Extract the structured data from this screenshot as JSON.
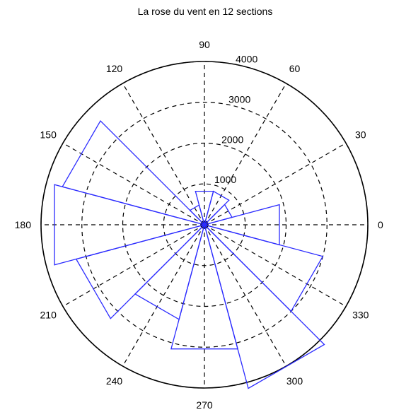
{
  "chart_data": {
    "type": "polar-bar",
    "title": "La rose du vent en 12 sections",
    "angle_unit": "degrees",
    "angle_ticks": [
      0,
      30,
      60,
      90,
      120,
      150,
      180,
      210,
      240,
      270,
      300,
      330
    ],
    "angle_tick_labels": [
      "0",
      "30",
      "60",
      "90",
      "120",
      "150",
      "180",
      "210",
      "240",
      "270",
      "300",
      "330"
    ],
    "radial_ticks": [
      1000,
      2000,
      3000,
      4000
    ],
    "radial_tick_labels": [
      "1000",
      "2000",
      "3000",
      "4000"
    ],
    "rlim": [
      0,
      4000
    ],
    "grid": true,
    "sector_width_deg": 30,
    "sectors": [
      {
        "center": 0,
        "value": 1900
      },
      {
        "center": 30,
        "value": 700
      },
      {
        "center": 60,
        "value": 850
      },
      {
        "center": 90,
        "value": 850
      },
      {
        "center": 120,
        "value": 500
      },
      {
        "center": 150,
        "value": 3600
      },
      {
        "center": 180,
        "value": 3800
      },
      {
        "center": 210,
        "value": 3250
      },
      {
        "center": 240,
        "value": 2400
      },
      {
        "center": 270,
        "value": 3150
      },
      {
        "center": 300,
        "value": 4150
      },
      {
        "center": 330,
        "value": 3000
      }
    ],
    "colors": {
      "sector": "#2b2bff",
      "grid": "#000000"
    }
  }
}
